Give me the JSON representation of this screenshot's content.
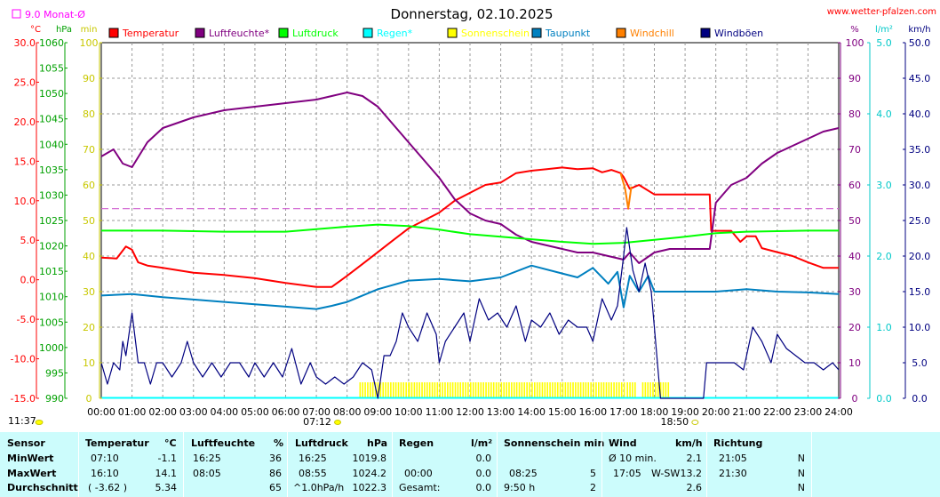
{
  "chart_data": {
    "type": "line",
    "title": "Donnerstag, 02.10.2025",
    "source": "www.wetter-pfalzen.com",
    "monthly_avg_label": "9.0 Monat-Ø",
    "monthly_avg_temp": 9.0,
    "x_labels": [
      "00:00",
      "01:00",
      "02:00",
      "03:00",
      "04:00",
      "05:00",
      "06:00",
      "07:00",
      "08:00",
      "09:00",
      "10:00",
      "11:00",
      "12:00",
      "13:00",
      "14:00",
      "15:00",
      "16:00",
      "17:00",
      "18:00",
      "19:00",
      "20:00",
      "21:00",
      "22:00",
      "23:00",
      "24:00"
    ],
    "current_time": "11:37",
    "sunrise": "07:12",
    "sunset": "18:50",
    "sunrise_h": 7.2,
    "sunset_h": 18.833,
    "axes": {
      "temp": {
        "unit": "°C",
        "min": -15,
        "max": 30,
        "ticks": [
          "30.0",
          "25.0",
          "20.0",
          "15.0",
          "10.0",
          "5.0",
          "0.0",
          "-5.0",
          "-10.0",
          "-15.0"
        ]
      },
      "pressure": {
        "unit": "hPa",
        "min": 990,
        "max": 1060,
        "ticks": [
          "1060",
          "1055",
          "1050",
          "1045",
          "1040",
          "1035",
          "1030",
          "1025",
          "1020",
          "1015",
          "1010",
          "1005",
          "1000",
          "995",
          "990"
        ]
      },
      "sun_min": {
        "unit": "min",
        "min": 0,
        "max": 100,
        "ticks": [
          "100",
          "90",
          "80",
          "70",
          "60",
          "50",
          "40",
          "30",
          "20",
          "10",
          "0"
        ]
      },
      "humidity": {
        "unit": "%",
        "min": 0,
        "max": 100,
        "ticks": [
          "100",
          "90",
          "80",
          "70",
          "60",
          "50",
          "40",
          "30",
          "20",
          "10",
          "0"
        ]
      },
      "rain": {
        "unit": "l/m²",
        "min": 0,
        "max": 5,
        "ticks": [
          "5.0",
          "4.0",
          "3.0",
          "2.0",
          "1.0",
          "0.0"
        ]
      },
      "wind": {
        "unit": "km/h",
        "min": 0,
        "max": 50,
        "ticks": [
          "50.0",
          "45.0",
          "40.0",
          "35.0",
          "30.0",
          "25.0",
          "20.0",
          "15.0",
          "10.0",
          "5.0",
          "0.0"
        ]
      }
    },
    "legend": [
      {
        "name": "Temperatur",
        "color": "#ff0000"
      },
      {
        "name": "Luftfeuchte*",
        "color": "#800080"
      },
      {
        "name": "Luftdruck",
        "color": "#00ff00"
      },
      {
        "name": "Regen*",
        "color": "#00ffff"
      },
      {
        "name": "Sonnenschein",
        "color": "#ffff00"
      },
      {
        "name": "Taupunkt",
        "color": "#0080c0"
      },
      {
        "name": "Windchill",
        "color": "#ff8000"
      },
      {
        "name": "Windböen",
        "color": "#000080"
      }
    ],
    "series": [
      {
        "name": "Temperatur",
        "axis": "temp",
        "color": "#ff0000",
        "x": [
          0,
          0.5,
          0.8,
          1.0,
          1.2,
          1.5,
          2.0,
          3.0,
          4.0,
          5.0,
          6.0,
          7.0,
          7.5,
          8.0,
          8.5,
          9.0,
          9.5,
          10.0,
          10.5,
          11.0,
          11.5,
          12.0,
          12.5,
          13.0,
          13.5,
          14.0,
          14.5,
          15.0,
          15.5,
          16.0,
          16.3,
          16.6,
          16.9,
          17.0,
          17.2,
          17.5,
          18.0,
          18.5,
          19.0,
          19.5,
          19.8,
          19.85,
          20.0,
          20.5,
          20.8,
          21.0,
          21.3,
          21.5,
          22.0,
          22.5,
          23.0,
          23.5,
          24.0
        ],
        "y": [
          2.8,
          2.7,
          4.2,
          3.8,
          2.2,
          1.8,
          1.5,
          0.9,
          0.6,
          0.2,
          -0.4,
          -0.9,
          -0.9,
          0.5,
          2.0,
          3.5,
          5.0,
          6.5,
          7.5,
          8.5,
          10.0,
          11.0,
          12.0,
          12.3,
          13.5,
          13.8,
          14.0,
          14.2,
          14.0,
          14.1,
          13.6,
          13.9,
          13.5,
          13.0,
          11.5,
          12.0,
          10.8,
          10.8,
          10.8,
          10.8,
          10.8,
          6.2,
          6.2,
          6.2,
          4.8,
          5.5,
          5.5,
          4.0,
          3.5,
          3.0,
          2.2,
          1.5,
          1.5
        ]
      },
      {
        "name": "Luftfeuchte*",
        "axis": "humidity",
        "color": "#800080",
        "x": [
          0,
          0.4,
          0.7,
          1.0,
          1.5,
          2.0,
          3.0,
          4.0,
          5.0,
          6.0,
          7.0,
          7.5,
          8.0,
          8.5,
          9.0,
          10.0,
          11.0,
          11.5,
          12.0,
          12.5,
          13.0,
          13.5,
          14.0,
          14.5,
          15.0,
          15.5,
          16.0,
          16.5,
          17.0,
          17.2,
          17.5,
          18.0,
          18.5,
          19.0,
          19.5,
          19.8,
          20.0,
          20.5,
          21.0,
          21.5,
          22.0,
          22.5,
          23.0,
          23.5,
          24.0
        ],
        "y": [
          68,
          70,
          66,
          65,
          72,
          76,
          79,
          81,
          82,
          83,
          84,
          85,
          86,
          85,
          82,
          72,
          62,
          56,
          52,
          50,
          49,
          46,
          44,
          43,
          42,
          41,
          41,
          40,
          39,
          41,
          38,
          41,
          42,
          42,
          42,
          42,
          55,
          60,
          62,
          66,
          69,
          71,
          73,
          75,
          76
        ]
      },
      {
        "name": "Luftdruck",
        "axis": "pressure",
        "color": "#00ff00",
        "x": [
          0,
          2,
          4,
          6,
          7,
          8,
          9,
          10,
          11,
          12,
          13,
          14,
          15,
          16,
          17,
          18,
          19,
          20,
          21,
          22,
          23,
          24
        ],
        "y": [
          1023.0,
          1023.0,
          1022.8,
          1022.8,
          1023.3,
          1023.8,
          1024.2,
          1023.9,
          1023.2,
          1022.3,
          1021.8,
          1021.3,
          1020.8,
          1020.4,
          1020.6,
          1021.2,
          1021.8,
          1022.5,
          1022.8,
          1022.9,
          1023.0,
          1023.0
        ]
      },
      {
        "name": "Taupunkt",
        "axis": "temp",
        "color": "#0080c0",
        "x": [
          0,
          1,
          2,
          3,
          4,
          5,
          6,
          7,
          7.5,
          8,
          9,
          10,
          11,
          12,
          13,
          14,
          15,
          15.5,
          16,
          16.5,
          16.8,
          17,
          17.2,
          17.5,
          17.8,
          18,
          18.5,
          19,
          20,
          21,
          22,
          23,
          24
        ],
        "y": [
          -2.0,
          -1.8,
          -2.2,
          -2.5,
          -2.8,
          -3.1,
          -3.4,
          -3.7,
          -3.3,
          -2.8,
          -1.2,
          -0.1,
          0.1,
          -0.2,
          0.3,
          1.8,
          0.8,
          0.3,
          1.5,
          -0.5,
          1.0,
          -3.5,
          0.5,
          -1.5,
          0.5,
          -1.5,
          -1.5,
          -1.5,
          -1.5,
          -1.2,
          -1.5,
          -1.6,
          -1.8
        ]
      },
      {
        "name": "Windböen",
        "axis": "wind",
        "color": "#000080",
        "x": [
          0,
          0.2,
          0.4,
          0.6,
          0.7,
          0.8,
          1.0,
          1.2,
          1.4,
          1.6,
          1.8,
          2.0,
          2.3,
          2.6,
          2.8,
          3.0,
          3.3,
          3.6,
          3.9,
          4.2,
          4.5,
          4.8,
          5.0,
          5.3,
          5.6,
          5.9,
          6.2,
          6.5,
          6.8,
          7.0,
          7.3,
          7.6,
          7.9,
          8.2,
          8.5,
          8.8,
          9.0,
          9.2,
          9.4,
          9.6,
          9.8,
          10.0,
          10.3,
          10.6,
          10.9,
          11.0,
          11.2,
          11.5,
          11.8,
          12.0,
          12.3,
          12.6,
          12.9,
          13.2,
          13.5,
          13.8,
          14.0,
          14.3,
          14.6,
          14.9,
          15.2,
          15.5,
          15.8,
          16.0,
          16.3,
          16.6,
          16.8,
          17.0,
          17.1,
          17.3,
          17.5,
          17.7,
          17.9,
          18.0,
          18.2,
          18.5,
          18.8,
          19.0,
          19.3,
          19.6,
          19.7,
          20.0,
          20.3,
          20.6,
          20.9,
          21.0,
          21.2,
          21.5,
          21.8,
          22.0,
          22.3,
          22.6,
          22.9,
          23.2,
          23.5,
          23.8,
          24.0
        ],
        "y": [
          5,
          2,
          5,
          4,
          8,
          6,
          12,
          5,
          5,
          2,
          5,
          5,
          3,
          5,
          8,
          5,
          3,
          5,
          3,
          5,
          5,
          3,
          5,
          3,
          5,
          3,
          7,
          2,
          5,
          3,
          2,
          3,
          2,
          3,
          5,
          4,
          0,
          6,
          6,
          8,
          12,
          10,
          8,
          12,
          9,
          5,
          8,
          10,
          12,
          8,
          14,
          11,
          12,
          10,
          13,
          8,
          11,
          10,
          12,
          9,
          11,
          10,
          10,
          8,
          14,
          11,
          13,
          20,
          24,
          18,
          15,
          19,
          15,
          10,
          0,
          0,
          0,
          0,
          0,
          0,
          5,
          5,
          5,
          5,
          4,
          6,
          10,
          8,
          5,
          9,
          7,
          6,
          5,
          5,
          4,
          5,
          4
        ]
      },
      {
        "name": "Windchill",
        "axis": "temp",
        "color": "#ff8000",
        "x": [
          16.9,
          17.05,
          17.15,
          17.25
        ],
        "y": [
          13.5,
          11.5,
          9.0,
          11.8
        ]
      }
    ],
    "sunshine": {
      "name": "Sonnenschein",
      "axis": "sun_min",
      "color": "#ffff00",
      "segments": [
        [
          8.4,
          10.0
        ],
        [
          10.0,
          17.0
        ],
        [
          17.1,
          17.4
        ],
        [
          17.6,
          18.5
        ]
      ]
    }
  },
  "stats": {
    "sensor": {
      "header": "Sensor",
      "rows": [
        "MinWert",
        "MaxWert",
        "Durchschnitt"
      ]
    },
    "temperature": {
      "header": "Temperatur",
      "unit": "°C",
      "rows": [
        [
          "07:10",
          "-1.1"
        ],
        [
          "16:10",
          "14.1"
        ],
        [
          "( -3.62 )",
          "5.34"
        ]
      ]
    },
    "humidity": {
      "header": "Luftfeuchte",
      "unit": "%",
      "rows": [
        [
          "16:25",
          "36"
        ],
        [
          "08:05",
          "86"
        ],
        [
          "",
          "65"
        ]
      ]
    },
    "pressure": {
      "header": "Luftdruck",
      "unit": "hPa",
      "rows": [
        [
          "16:25",
          "1019.8"
        ],
        [
          "08:55",
          "1024.2"
        ],
        [
          "^1.0hPa/h",
          "1022.3"
        ]
      ]
    },
    "rain": {
      "header": "Regen",
      "unit": "l/m²",
      "rows": [
        [
          "",
          ""
        ],
        [
          "00:00",
          "0.0"
        ],
        [
          "Gesamt:",
          "0.0"
        ]
      ],
      "row0_value": "0.0"
    },
    "sunshine": {
      "header": "Sonnenschein min",
      "rows": [
        [
          "",
          ""
        ],
        [
          "08:25",
          "5"
        ],
        [
          "9:50 h",
          "2"
        ]
      ]
    },
    "wind": {
      "header": "Wind",
      "unit": "km/h",
      "rows": [
        [
          "Ø 10 min.",
          "",
          "2.1"
        ],
        [
          "17:05",
          "W-SW",
          "13.2"
        ],
        [
          "",
          "",
          "2.6"
        ]
      ]
    },
    "direction": {
      "header": "Richtung",
      "rows": [
        [
          "21:05",
          "N"
        ],
        [
          "21:30",
          "N"
        ],
        [
          "",
          "N"
        ]
      ]
    }
  }
}
